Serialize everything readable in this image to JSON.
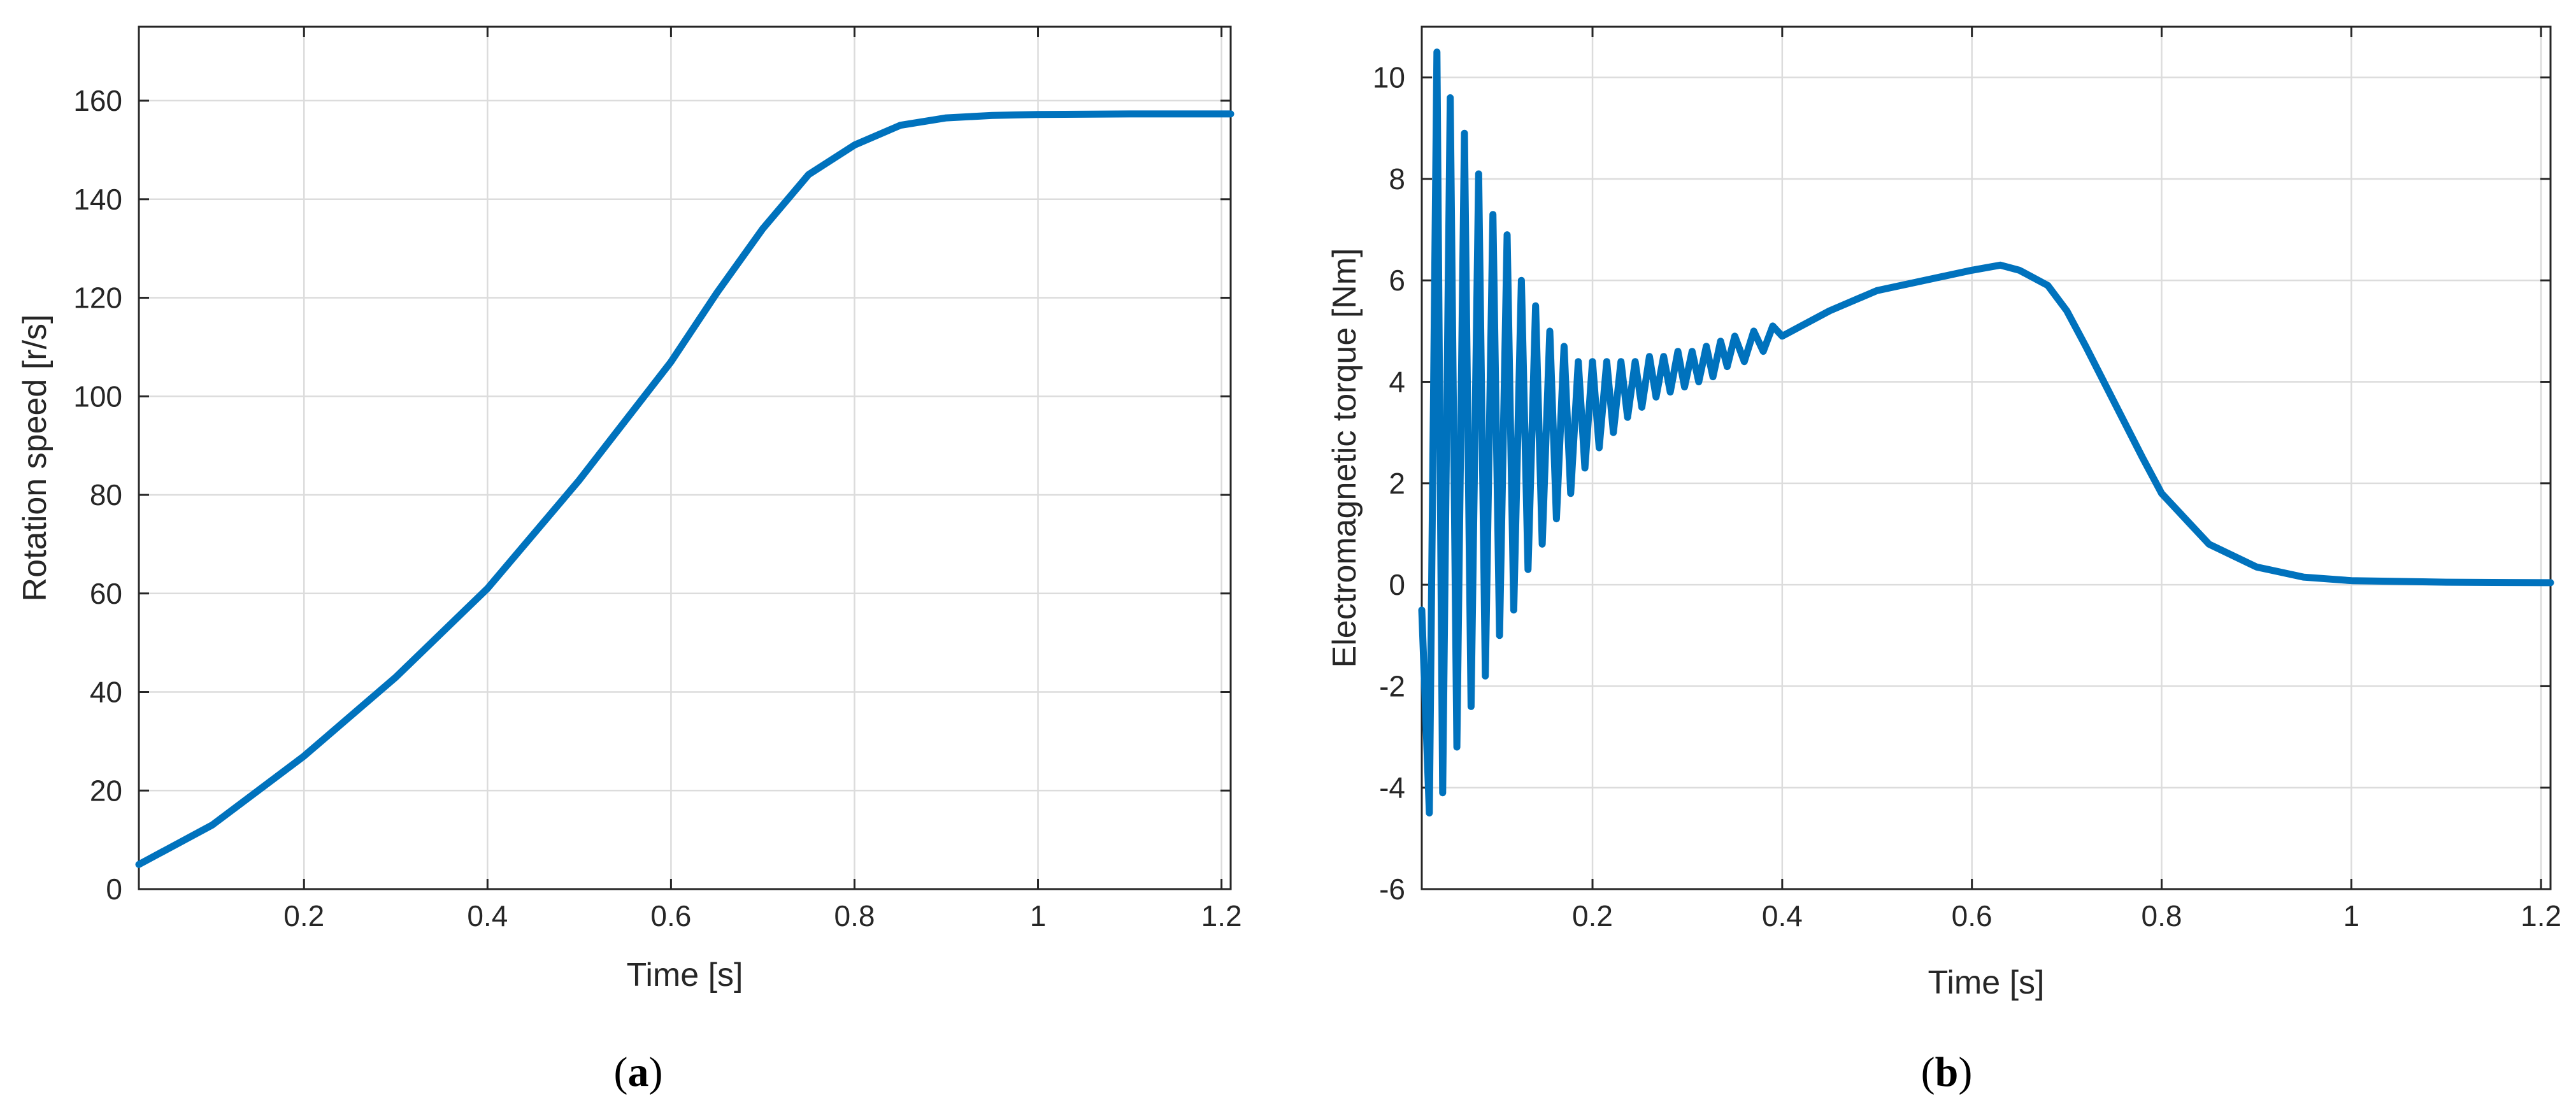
{
  "colors": {
    "series": "#0072BD",
    "axis": "#262626",
    "grid": "#dcdcdc",
    "background": "#ffffff"
  },
  "captions": [
    {
      "open": "(",
      "letter": "a",
      "close": ")"
    },
    {
      "open": "(",
      "letter": "b",
      "close": ")"
    }
  ],
  "chart_data": [
    {
      "type": "line",
      "xlabel": "Time [s]",
      "ylabel": "Rotation speed [r/s]",
      "xlim": [
        0.02,
        1.21
      ],
      "ylim": [
        0,
        175
      ],
      "grid": true,
      "xticks": [
        0.2,
        0.4,
        0.6,
        0.8,
        1,
        1.2
      ],
      "xtick_labels": [
        "0.2",
        "0.4",
        "0.6",
        "0.8",
        "1",
        "1.2"
      ],
      "yticks": [
        0,
        20,
        40,
        60,
        80,
        100,
        120,
        140,
        160
      ],
      "ytick_labels": [
        "0",
        "20",
        "40",
        "60",
        "80",
        "100",
        "120",
        "140",
        "160"
      ],
      "series": [
        {
          "x": [
            0.02,
            0.1,
            0.2,
            0.3,
            0.4,
            0.5,
            0.6,
            0.65,
            0.7,
            0.75,
            0.8,
            0.85,
            0.9,
            0.95,
            1.0,
            1.1,
            1.21
          ],
          "y": [
            5,
            13,
            27,
            43,
            61,
            83,
            107,
            121,
            134,
            145,
            151,
            155,
            156.5,
            157,
            157.2,
            157.3,
            157.3
          ]
        }
      ]
    },
    {
      "type": "line",
      "xlabel": "Time [s]",
      "ylabel": "Electromagnetic torque [Nm]",
      "xlim": [
        0.02,
        1.21
      ],
      "ylim": [
        -6,
        11
      ],
      "grid": true,
      "xticks": [
        0.2,
        0.4,
        0.6,
        0.8,
        1,
        1.2
      ],
      "xtick_labels": [
        "0.2",
        "0.4",
        "0.6",
        "0.8",
        "1",
        "1.2"
      ],
      "yticks": [
        -6,
        -4,
        -2,
        0,
        2,
        4,
        6,
        8,
        10
      ],
      "ytick_labels": [
        "-6",
        "-4",
        "-2",
        "0",
        "2",
        "4",
        "6",
        "8",
        "10"
      ],
      "series": [
        {
          "x": [
            0.02,
            0.028,
            0.036,
            0.042,
            0.05,
            0.057,
            0.065,
            0.072,
            0.08,
            0.087,
            0.095,
            0.102,
            0.11,
            0.117,
            0.125,
            0.132,
            0.14,
            0.147,
            0.155,
            0.162,
            0.17,
            0.177,
            0.185,
            0.192,
            0.2,
            0.207,
            0.215,
            0.222,
            0.23,
            0.237,
            0.245,
            0.252,
            0.26,
            0.267,
            0.275,
            0.282,
            0.29,
            0.297,
            0.305,
            0.312,
            0.32,
            0.327,
            0.335,
            0.342,
            0.35,
            0.36,
            0.37,
            0.38,
            0.39,
            0.4,
            0.45,
            0.5,
            0.55,
            0.6,
            0.63,
            0.65,
            0.68,
            0.7,
            0.72,
            0.75,
            0.78,
            0.8,
            0.85,
            0.9,
            0.95,
            1.0,
            1.1,
            1.21
          ],
          "y": [
            -0.5,
            -4.5,
            10.5,
            -4.1,
            9.6,
            -3.2,
            8.9,
            -2.4,
            8.1,
            -1.8,
            7.3,
            -1.0,
            6.9,
            -0.5,
            6.0,
            0.3,
            5.5,
            0.8,
            5.0,
            1.3,
            4.7,
            1.8,
            4.4,
            2.3,
            4.4,
            2.7,
            4.4,
            3.0,
            4.4,
            3.3,
            4.4,
            3.5,
            4.5,
            3.7,
            4.5,
            3.8,
            4.6,
            3.9,
            4.6,
            4.0,
            4.7,
            4.1,
            4.8,
            4.3,
            4.9,
            4.4,
            5.0,
            4.6,
            5.1,
            4.9,
            5.4,
            5.8,
            6.0,
            6.2,
            6.3,
            6.2,
            5.9,
            5.4,
            4.7,
            3.6,
            2.5,
            1.8,
            0.8,
            0.35,
            0.15,
            0.08,
            0.05,
            0.04
          ]
        }
      ]
    }
  ]
}
